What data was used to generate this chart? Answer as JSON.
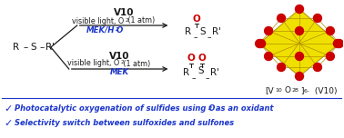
{
  "bg_color": "#ffffff",
  "text_color_black": "#1a1a1a",
  "text_color_blue": "#1a35cc",
  "text_color_red": "#cc0000",
  "bullet_color": "#1a35cc",
  "arrow_color": "#1a1a1a",
  "vanadate_yellow": "#f0e000",
  "vanadate_red": "#cc0000",
  "vanadate_line": "#b09000",
  "bullet1_main": "Photocatalytic oxygenation of sulfides using O",
  "bullet1_sub": "2",
  "bullet1_tail": " as an oxidant",
  "bullet2": "Selectivity switch between sulfoxides and sulfones"
}
